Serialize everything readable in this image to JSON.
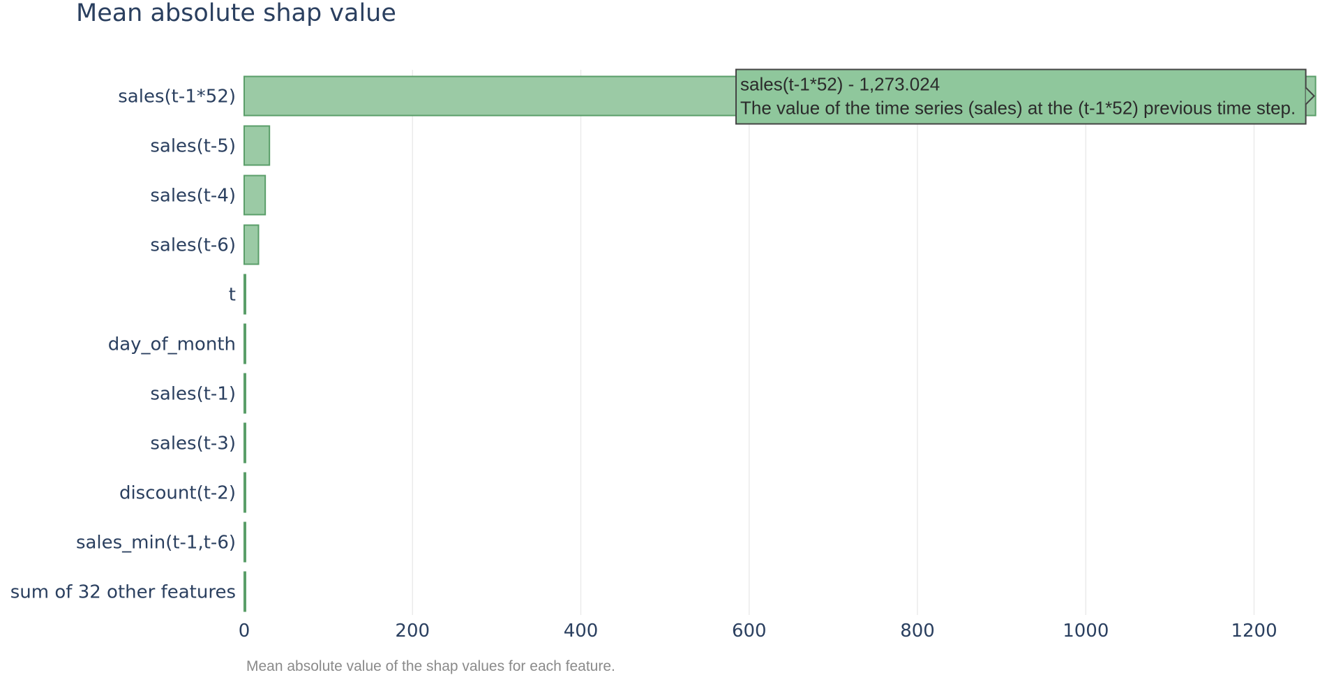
{
  "chart_data": {
    "type": "bar",
    "orientation": "horizontal",
    "title": "Mean absolute shap value",
    "caption": "Mean absolute value of the shap values for each feature.",
    "categories": [
      "sales(t-1*52)",
      "sales(t-5)",
      "sales(t-4)",
      "sales(t-6)",
      "t",
      "day_of_month",
      "sales(t-1)",
      "sales(t-3)",
      "discount(t-2)",
      "sales_min(t-1,t-6)",
      "sum of 32 other features"
    ],
    "values": [
      1273.024,
      30,
      25,
      17,
      1,
      1,
      1,
      1,
      1,
      1,
      1
    ],
    "xlim": [
      0,
      1275
    ],
    "xticks": [
      0,
      200,
      400,
      600,
      800,
      1000,
      1200
    ],
    "grid": true,
    "bar_color": "#9bcaa5",
    "bar_border_color": "#5a9e69",
    "hover": {
      "category_index": 0,
      "line1": "sales(t-1*52)  - 1,273.024",
      "line2": "The value of the time series (sales) at the (t-1*52) previous time step."
    }
  }
}
